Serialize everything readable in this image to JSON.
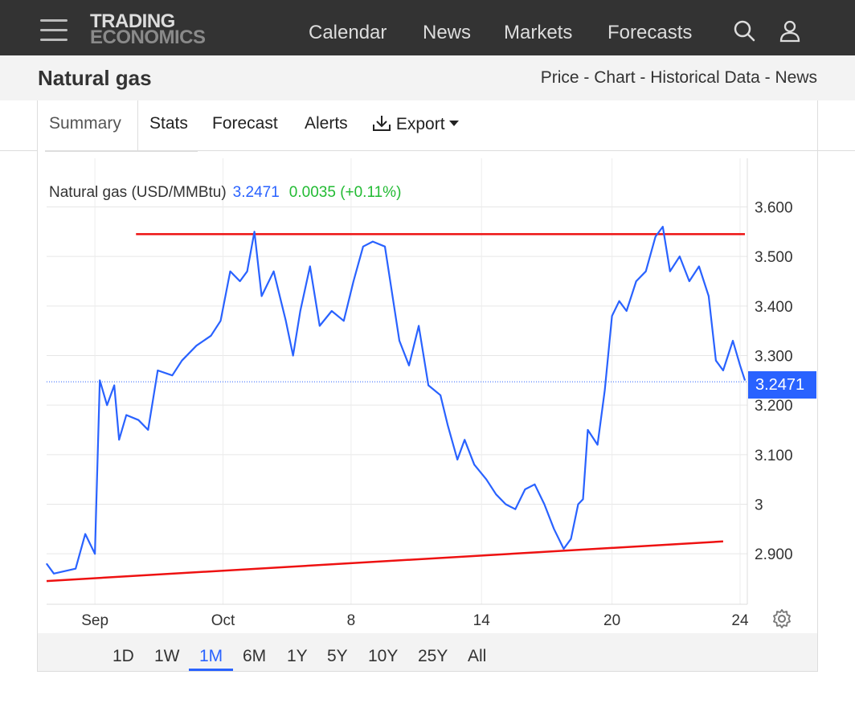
{
  "header": {
    "logo_line1": "TRADING",
    "logo_line2": "ECONOMICS",
    "nav": [
      "Calendar",
      "News",
      "Markets",
      "Forecasts"
    ],
    "icons": [
      "menu-icon",
      "search-icon",
      "user-icon"
    ]
  },
  "subheader": {
    "title": "Natural gas",
    "links": [
      "Price",
      "Chart",
      "Historical Data",
      "News"
    ],
    "separator": " - "
  },
  "tabs": [
    "Summary",
    "Stats",
    "Forecast",
    "Alerts",
    "Export"
  ],
  "active_tab": "Summary",
  "ranges": [
    "1D",
    "1W",
    "1M",
    "6M",
    "1Y",
    "5Y",
    "10Y",
    "25Y",
    "All"
  ],
  "active_range": "1M",
  "legend": {
    "name": "Natural gas (USD/MMBtu)",
    "price": "3.2471",
    "change": "0.0035 (+0.11%)"
  },
  "current_price_tag": "3.2471",
  "colors": {
    "line": "#2962ff",
    "trend": "#ee1111",
    "up": "#22bb33",
    "brand_dark": "#333333"
  },
  "chart_data": {
    "type": "line",
    "title": "Natural gas (USD/MMBtu)",
    "yticks": [
      "3.600",
      "3.500",
      "3.400",
      "3.300",
      "3.200",
      "3.100",
      "3",
      "2.900"
    ],
    "xticks": [
      "Sep",
      "Oct",
      "8",
      "14",
      "20",
      "24"
    ],
    "ylim": [
      2.84,
      3.62
    ],
    "last": 3.2471,
    "series": [
      {
        "name": "Natural gas",
        "points": [
          [
            0,
            2.88
          ],
          [
            0.3,
            2.86
          ],
          [
            1.2,
            2.87
          ],
          [
            1.6,
            2.94
          ],
          [
            2.0,
            2.9
          ],
          [
            2.2,
            3.25
          ],
          [
            2.5,
            3.2
          ],
          [
            2.8,
            3.24
          ],
          [
            3.0,
            3.13
          ],
          [
            3.3,
            3.18
          ],
          [
            3.8,
            3.17
          ],
          [
            4.2,
            3.15
          ],
          [
            4.6,
            3.27
          ],
          [
            5.2,
            3.26
          ],
          [
            5.6,
            3.29
          ],
          [
            6.2,
            3.32
          ],
          [
            6.8,
            3.34
          ],
          [
            7.2,
            3.37
          ],
          [
            7.6,
            3.47
          ],
          [
            8.0,
            3.45
          ],
          [
            8.3,
            3.47
          ],
          [
            8.6,
            3.55
          ],
          [
            8.9,
            3.42
          ],
          [
            9.4,
            3.47
          ],
          [
            9.9,
            3.37
          ],
          [
            10.2,
            3.3
          ],
          [
            10.5,
            3.39
          ],
          [
            10.9,
            3.48
          ],
          [
            11.3,
            3.36
          ],
          [
            11.8,
            3.39
          ],
          [
            12.3,
            3.37
          ],
          [
            12.7,
            3.45
          ],
          [
            13.1,
            3.52
          ],
          [
            13.5,
            3.53
          ],
          [
            14.0,
            3.52
          ],
          [
            14.6,
            3.33
          ],
          [
            15.0,
            3.28
          ],
          [
            15.4,
            3.36
          ],
          [
            15.8,
            3.24
          ],
          [
            16.3,
            3.22
          ],
          [
            16.6,
            3.16
          ],
          [
            17.0,
            3.09
          ],
          [
            17.3,
            3.13
          ],
          [
            17.7,
            3.08
          ],
          [
            18.2,
            3.05
          ],
          [
            18.6,
            3.02
          ],
          [
            19.0,
            3.0
          ],
          [
            19.4,
            2.99
          ],
          [
            19.8,
            3.03
          ],
          [
            20.2,
            3.04
          ],
          [
            20.6,
            3.0
          ],
          [
            21.0,
            2.95
          ],
          [
            21.4,
            2.91
          ],
          [
            21.7,
            2.93
          ],
          [
            22.0,
            3.0
          ],
          [
            22.2,
            3.01
          ],
          [
            22.4,
            3.15
          ],
          [
            22.8,
            3.12
          ],
          [
            23.1,
            3.23
          ],
          [
            23.4,
            3.38
          ],
          [
            23.7,
            3.41
          ],
          [
            24.0,
            3.39
          ],
          [
            24.4,
            3.45
          ],
          [
            24.8,
            3.47
          ],
          [
            25.2,
            3.54
          ],
          [
            25.5,
            3.56
          ],
          [
            25.8,
            3.47
          ],
          [
            26.2,
            3.5
          ],
          [
            26.6,
            3.45
          ],
          [
            27.0,
            3.48
          ],
          [
            27.4,
            3.42
          ],
          [
            27.7,
            3.29
          ],
          [
            28.0,
            3.27
          ],
          [
            28.4,
            3.33
          ],
          [
            28.7,
            3.28
          ],
          [
            28.9,
            3.25
          ]
        ]
      }
    ],
    "trendlines": [
      {
        "from": [
          3.7,
          3.545
        ],
        "to": [
          28.9,
          3.545
        ]
      },
      {
        "from": [
          0.0,
          2.845
        ],
        "to": [
          28.0,
          2.925
        ]
      }
    ],
    "xdomain": [
      0,
      29
    ],
    "grid": true
  }
}
